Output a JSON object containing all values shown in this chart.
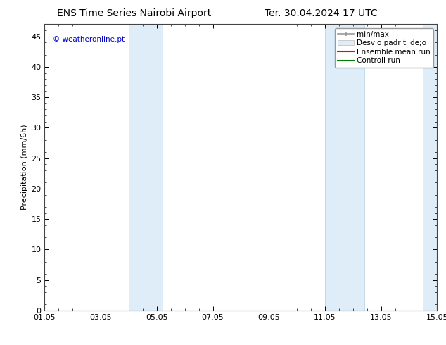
{
  "title_left": "ENS Time Series Nairobi Airport",
  "title_right": "Ter. 30.04.2024 17 UTC",
  "ylabel": "Precipitation (mm/6h)",
  "xlim": [
    0,
    14
  ],
  "ylim": [
    0,
    47
  ],
  "yticks": [
    0,
    5,
    10,
    15,
    20,
    25,
    30,
    35,
    40,
    45
  ],
  "xtick_labels": [
    "01.05",
    "03.05",
    "05.05",
    "07.05",
    "09.05",
    "11.05",
    "13.05",
    "15.05"
  ],
  "xtick_positions": [
    0,
    2,
    4,
    6,
    8,
    10,
    12,
    14
  ],
  "shaded_regions": [
    {
      "x_start": 2.8,
      "x_end": 3.5,
      "color": "#deedf8"
    },
    {
      "x_start": 3.5,
      "x_end": 4.2,
      "color": "#deedf8"
    },
    {
      "x_start": 10.2,
      "x_end": 10.9,
      "color": "#deedf8"
    },
    {
      "x_start": 10.9,
      "x_end": 11.6,
      "color": "#deedf8"
    },
    {
      "x_start": 13.3,
      "x_end": 14.0,
      "color": "#deedf8"
    }
  ],
  "watermark": "© weatheronline.pt",
  "watermark_color": "#0000cc",
  "background_color": "#ffffff",
  "shade_color": "#deedf8",
  "shade_border_color": "#b8d4eb",
  "title_fontsize": 10,
  "tick_fontsize": 8,
  "ylabel_fontsize": 8,
  "legend_fontsize": 7.5
}
